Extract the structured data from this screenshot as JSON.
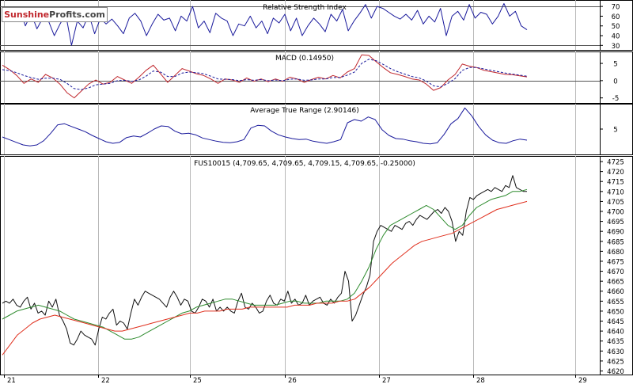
{
  "logo": {
    "part1": "Sunshine",
    "part2": "Profits.com"
  },
  "colors": {
    "rsi": "#1a1a9c",
    "macd": "#c0272d",
    "signal": "#1a1a9c",
    "atr": "#1a1a9c",
    "price": "#111111",
    "ma_fast": "#2e8b2e",
    "ma_slow": "#e0301e",
    "grid": "#b8b8b8",
    "axis": "#000000"
  },
  "x_axis": {
    "labels": [
      "21",
      "22",
      "25",
      "26",
      "27",
      "28",
      "29"
    ],
    "positions": [
      0,
      0.5,
      1.5,
      2.5,
      3.5,
      4.5,
      5.5
    ]
  },
  "chart_data": [
    {
      "type": "line",
      "title": "Relative Strength Index",
      "y_ticks": [
        70,
        60,
        50,
        40,
        30
      ],
      "ylim": [
        27,
        75
      ],
      "reference_lines": [
        70,
        30
      ],
      "series": [
        {
          "values": [
            58,
            62,
            55,
            68,
            50,
            63,
            47,
            58,
            55,
            40,
            52,
            62,
            30,
            55,
            48,
            62,
            42,
            58,
            52,
            57,
            50,
            42,
            58,
            63,
            55,
            40,
            52,
            62,
            56,
            58,
            45,
            60,
            55,
            70,
            48,
            55,
            43,
            63,
            58,
            55,
            40,
            52,
            50,
            60,
            48,
            55,
            42,
            58,
            53,
            62,
            45,
            58,
            40,
            50,
            58,
            52,
            44,
            62,
            55,
            67,
            45,
            55,
            63,
            72,
            58,
            70,
            68,
            64,
            60,
            57,
            62,
            56,
            66,
            52,
            60,
            54,
            68,
            40,
            60,
            65,
            56,
            72,
            58,
            64,
            62,
            52,
            60,
            73,
            60,
            65,
            50,
            46
          ]
        }
      ]
    },
    {
      "type": "line",
      "title": "MACD (0.14950)",
      "y_ticks": [
        5,
        0,
        -5
      ],
      "ylim": [
        -6,
        8
      ],
      "reference_lines": [
        0
      ],
      "series": [
        {
          "values": [
            4.5,
            3.2,
            1.5,
            -0.8,
            0.5,
            -0.5,
            1.8,
            0.8,
            -1,
            -3.5,
            -5,
            -3,
            -1,
            0.2,
            -1,
            -0.5,
            1.2,
            0.2,
            -0.8,
            1,
            3,
            4.5,
            2,
            -0.5,
            1.5,
            3.5,
            2.8,
            2,
            1.5,
            0.5,
            -0.8,
            0.5,
            0.2,
            -0.5,
            0.8,
            -0.2,
            0.5,
            -0.3,
            0.5,
            -0.2,
            1,
            0.5,
            -0.5,
            0.3,
            1,
            0.5,
            1.5,
            0.8,
            2.5,
            3.5,
            7.5,
            7.3,
            5.5,
            3.8,
            2.3,
            1.8,
            1.2,
            0.5,
            0.2,
            -1,
            -2.8,
            -2,
            0.2,
            1.8,
            4.8,
            4.2,
            3.8,
            3,
            2.6,
            2.2,
            1.8,
            1.7,
            1.4,
            1.1
          ]
        },
        {
          "values": [
            3.2,
            2.9,
            2.3,
            1.5,
            0.9,
            0.4,
            0.7,
            0.7,
            0.4,
            -0.8,
            -2.3,
            -2.6,
            -2.1,
            -1.2,
            -1,
            -0.8,
            0,
            0.1,
            -0.2,
            0.2,
            1.3,
            2.8,
            2.5,
            1.2,
            1.2,
            2.2,
            2.5,
            2.3,
            2,
            1.3,
            0.5,
            0.4,
            0.3,
            0,
            0.3,
            0.1,
            0.3,
            0,
            0.2,
            0,
            0.4,
            0.5,
            0.1,
            0.2,
            0.5,
            0.5,
            0.9,
            0.9,
            1.6,
            2.5,
            5,
            6.2,
            5.8,
            4.7,
            3.5,
            2.6,
            1.9,
            1.2,
            0.8,
            -0.1,
            -1.5,
            -1.8,
            -0.8,
            0.6,
            3,
            3.8,
            3.8,
            3.4,
            3,
            2.6,
            2.2,
            1.9,
            1.6,
            1.3
          ]
        }
      ]
    },
    {
      "type": "line",
      "title": "Average True Range (2.90146)",
      "y_ticks": [
        5
      ],
      "ylim": [
        0.5,
        9.5
      ],
      "series": [
        {
          "values": [
            3.5,
            3,
            2.5,
            2,
            1.8,
            2,
            2.8,
            4.2,
            5.8,
            6,
            5.5,
            5,
            4.5,
            3.8,
            3.2,
            2.6,
            2.3,
            2.5,
            3.4,
            3.7,
            3.5,
            4.2,
            5,
            5.6,
            5.5,
            4.6,
            4.1,
            4.2,
            3.9,
            3.3,
            3,
            2.7,
            2.5,
            2.4,
            2.6,
            3,
            5.2,
            5.7,
            5.6,
            4.6,
            3.9,
            3.5,
            3.2,
            3,
            3.1,
            2.7,
            2.5,
            2.3,
            2.6,
            3,
            6.2,
            6.8,
            6.5,
            7.3,
            6.8,
            4.9,
            3.8,
            3.2,
            3.1,
            2.8,
            2.6,
            2.3,
            2.2,
            2.4,
            4,
            6,
            7,
            9,
            7.5,
            5.5,
            3.9,
            2.9,
            2.4,
            2.3,
            2.8,
            3.1,
            2.9
          ]
        }
      ]
    },
    {
      "type": "line",
      "title": "FUS10015 (4,709.65, 4,709.65, 4,709.15, 4,709.65, -0.25000)",
      "y_ticks": [
        4725,
        4720,
        4715,
        4710,
        4705,
        4700,
        4695,
        4690,
        4685,
        4680,
        4675,
        4670,
        4665,
        4660,
        4655,
        4650,
        4645,
        4640,
        4635,
        4630,
        4625,
        4620
      ],
      "ylim": [
        4619,
        4727
      ],
      "series": [
        {
          "values": [
            4654,
            4655,
            4654,
            4656,
            4653,
            4652,
            4655,
            4657,
            4651,
            4654,
            4649,
            4650,
            4648,
            4655,
            4652,
            4656,
            4648,
            4645,
            4641,
            4634,
            4633,
            4636,
            4640,
            4638,
            4637,
            4636,
            4633,
            4641,
            4647,
            4646,
            4649,
            4651,
            4643,
            4645,
            4644,
            4641,
            4649,
            4656,
            4653,
            4657,
            4660,
            4659,
            4658,
            4657,
            4656,
            4654,
            4652,
            4657,
            4660,
            4657,
            4653,
            4656,
            4655,
            4650,
            4649,
            4652,
            4656,
            4655,
            4652,
            4656,
            4650,
            4652,
            4650,
            4652,
            4650,
            4649,
            4655,
            4659,
            4652,
            4651,
            4654,
            4652,
            4649,
            4650,
            4655,
            4658,
            4654,
            4653,
            4656,
            4655,
            4660,
            4654,
            4656,
            4653,
            4654,
            4658,
            4653,
            4655,
            4656,
            4657,
            4654,
            4653,
            4656,
            4654,
            4657,
            4659,
            4670,
            4665,
            4645,
            4648,
            4653,
            4658,
            4662,
            4668,
            4685,
            4690,
            4693,
            4692,
            4691,
            4690,
            4693,
            4692,
            4691,
            4694,
            4695,
            4693,
            4696,
            4698,
            4697,
            4696,
            4698,
            4700,
            4701,
            4699,
            4702,
            4700,
            4695,
            4685,
            4690,
            4688,
            4700,
            4707,
            4706,
            4708,
            4709,
            4710,
            4711,
            4710,
            4712,
            4711,
            4710,
            4713,
            4712,
            4718,
            4712,
            4711,
            4710,
            4710
          ]
        },
        {
          "values": [
            4646,
            4648,
            4650,
            4651,
            4652,
            4653,
            4652,
            4651,
            4650,
            4648,
            4646,
            4645,
            4644,
            4643,
            4642,
            4640,
            4638,
            4636,
            4636,
            4637,
            4639,
            4641,
            4643,
            4645,
            4647,
            4649,
            4650,
            4652,
            4653,
            4654,
            4655,
            4656,
            4656,
            4655,
            4654,
            4653,
            4653,
            4653,
            4653,
            4654,
            4655,
            4655,
            4654,
            4654,
            4654,
            4655,
            4655,
            4655,
            4656,
            4659,
            4665,
            4672,
            4681,
            4688,
            4693,
            4695,
            4697,
            4699,
            4701,
            4703,
            4701,
            4697,
            4693,
            4691,
            4693,
            4698,
            4702,
            4704,
            4706,
            4707,
            4708,
            4710,
            4710,
            4711
          ]
        },
        {
          "values": [
            4628,
            4633,
            4638,
            4641,
            4644,
            4646,
            4647,
            4648,
            4647,
            4646,
            4645,
            4644,
            4643,
            4642,
            4641,
            4640,
            4640,
            4641,
            4642,
            4643,
            4644,
            4645,
            4646,
            4647,
            4648,
            4649,
            4649,
            4650,
            4650,
            4650,
            4651,
            4651,
            4651,
            4652,
            4652,
            4652,
            4652,
            4652,
            4652,
            4653,
            4653,
            4653,
            4654,
            4654,
            4654,
            4655,
            4655,
            4656,
            4659,
            4662,
            4666,
            4670,
            4674,
            4677,
            4680,
            4683,
            4685,
            4686,
            4687,
            4688,
            4689,
            4691,
            4693,
            4695,
            4697,
            4699,
            4701,
            4702,
            4703,
            4704,
            4705
          ]
        }
      ]
    }
  ]
}
